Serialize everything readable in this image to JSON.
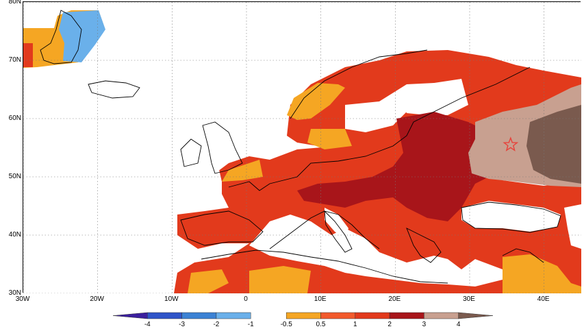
{
  "map": {
    "lat_labels": [
      "80N",
      "70N",
      "60N",
      "50N",
      "40N",
      "30N"
    ],
    "lon_labels": [
      "30W",
      "20W",
      "10W",
      "0",
      "10E",
      "20E",
      "30E",
      "40E"
    ],
    "lat_range": [
      30,
      80
    ],
    "lon_range": [
      -30,
      45
    ],
    "grid": "dotted",
    "marker": {
      "type": "star",
      "lon": 35.5,
      "lat": 55.5,
      "color": "#e8413a"
    }
  },
  "colorbar": {
    "labels": [
      "-4",
      "-3",
      "-2",
      "-1",
      "-0.5",
      "0.5",
      "1",
      "2",
      "3",
      "4"
    ],
    "negative_colors": [
      "#3b1f9e",
      "#2f54c8",
      "#3b82d4",
      "#6ab0ea"
    ],
    "positive_colors": [
      "#f5a623",
      "#f25a2c",
      "#e23a1c",
      "#a8151a",
      "#c8a090",
      "#7a5a4e"
    ]
  }
}
